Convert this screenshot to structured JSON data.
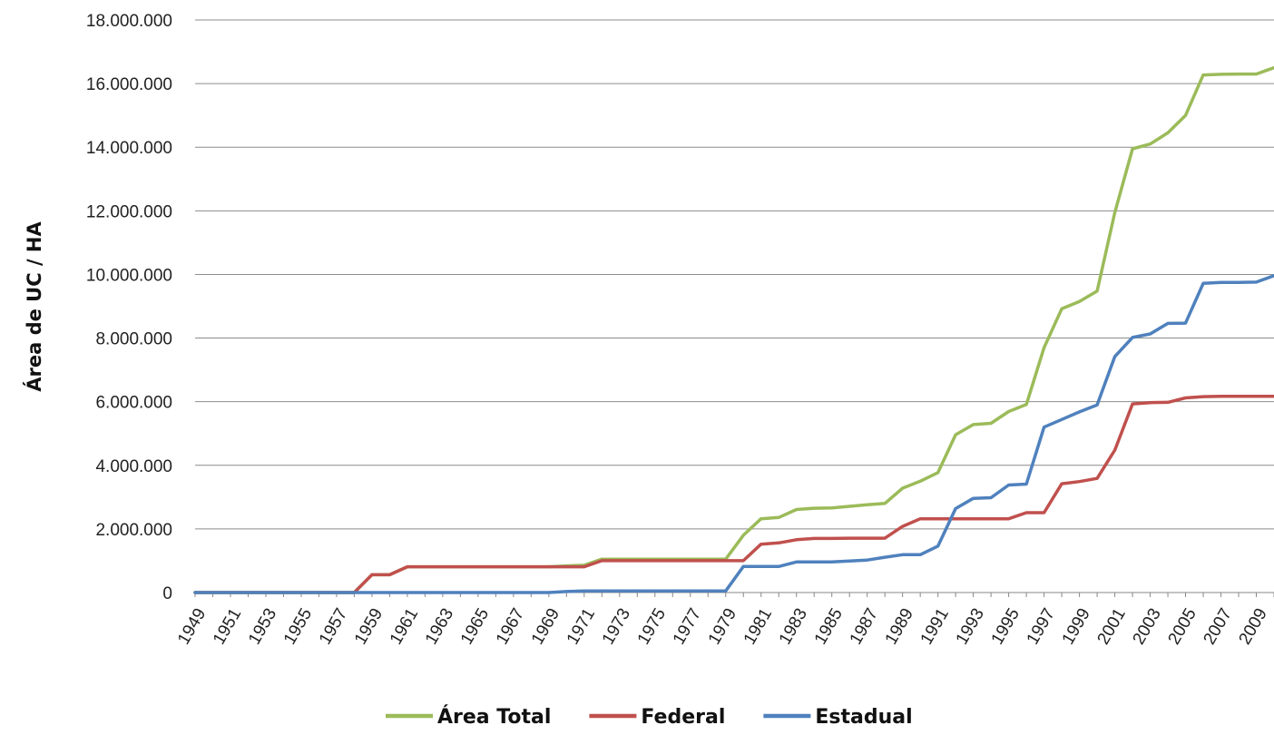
{
  "chart_data": {
    "type": "line",
    "title": "",
    "xlabel": "",
    "ylabel": "Área de UC / HA",
    "x": [
      1949,
      1950,
      1951,
      1952,
      1953,
      1954,
      1955,
      1956,
      1957,
      1958,
      1959,
      1960,
      1961,
      1962,
      1963,
      1964,
      1965,
      1966,
      1967,
      1968,
      1969,
      1970,
      1971,
      1972,
      1973,
      1974,
      1975,
      1976,
      1977,
      1978,
      1979,
      1980,
      1981,
      1982,
      1983,
      1984,
      1985,
      1986,
      1987,
      1988,
      1989,
      1990,
      1991,
      1992,
      1993,
      1994,
      1995,
      1996,
      1997,
      1998,
      1999,
      2000,
      2001,
      2002,
      2003,
      2004,
      2005,
      2006,
      2007,
      2008,
      2009,
      2010
    ],
    "x_tick_labels": [
      "1949",
      "1951",
      "1953",
      "1955",
      "1957",
      "1959",
      "1961",
      "1963",
      "1965",
      "1967",
      "1969",
      "1971",
      "1973",
      "1975",
      "1977",
      "1979",
      "1981",
      "1983",
      "1985",
      "1987",
      "1989",
      "1991",
      "1993",
      "1995",
      "1997",
      "1999",
      "2001",
      "2003",
      "2005",
      "2007",
      "2009"
    ],
    "ylim": [
      0,
      18000000
    ],
    "y_ticks": [
      0,
      2000000,
      4000000,
      6000000,
      8000000,
      10000000,
      12000000,
      14000000,
      16000000,
      18000000
    ],
    "y_tick_labels": [
      "0",
      "2.000.000",
      "4.000.000",
      "6.000.000",
      "8.000.000",
      "10.000.000",
      "12.000.000",
      "14.000.000",
      "16.000.000",
      "18.000.000"
    ],
    "grid": "horizontal",
    "legend_position": "bottom",
    "series": [
      {
        "name": "Área Total",
        "color": "#9BBB59",
        "values": [
          0,
          0,
          0,
          0,
          0,
          0,
          0,
          0,
          0,
          0,
          560000,
          560000,
          810000,
          810000,
          810000,
          810000,
          810000,
          810000,
          810000,
          810000,
          810000,
          840000,
          860000,
          1050000,
          1050000,
          1050000,
          1050000,
          1050000,
          1050000,
          1050000,
          1050000,
          1800000,
          2320000,
          2360000,
          2610000,
          2650000,
          2660000,
          2710000,
          2760000,
          2800000,
          3280000,
          3500000,
          3770000,
          4960000,
          5280000,
          5320000,
          5690000,
          5910000,
          7700000,
          8920000,
          9150000,
          9480000,
          11950000,
          13950000,
          14100000,
          14450000,
          15000000,
          16270000,
          16290000,
          16300000,
          16300000,
          16500000
        ]
      },
      {
        "name": "Federal",
        "color": "#C0504D",
        "values": [
          0,
          0,
          0,
          0,
          0,
          0,
          0,
          0,
          0,
          0,
          560000,
          560000,
          810000,
          810000,
          810000,
          810000,
          810000,
          810000,
          810000,
          810000,
          810000,
          810000,
          810000,
          1000000,
          1000000,
          1000000,
          1000000,
          1000000,
          1000000,
          1000000,
          1000000,
          1000000,
          1520000,
          1560000,
          1660000,
          1700000,
          1700000,
          1710000,
          1710000,
          1710000,
          2080000,
          2320000,
          2320000,
          2320000,
          2320000,
          2320000,
          2320000,
          2510000,
          2510000,
          3420000,
          3490000,
          3590000,
          4480000,
          5930000,
          5970000,
          5980000,
          6120000,
          6160000,
          6170000,
          6170000,
          6170000,
          6170000
        ]
      },
      {
        "name": "Estadual",
        "color": "#4F81BD",
        "values": [
          0,
          0,
          0,
          0,
          0,
          0,
          0,
          0,
          0,
          0,
          0,
          0,
          0,
          0,
          0,
          0,
          0,
          0,
          0,
          0,
          0,
          30000,
          50000,
          50000,
          50000,
          50000,
          50000,
          50000,
          50000,
          50000,
          50000,
          820000,
          820000,
          820000,
          960000,
          960000,
          960000,
          990000,
          1020000,
          1110000,
          1190000,
          1190000,
          1460000,
          2640000,
          2960000,
          2980000,
          3380000,
          3410000,
          5200000,
          5440000,
          5680000,
          5900000,
          7420000,
          8020000,
          8130000,
          8460000,
          8470000,
          9720000,
          9750000,
          9750000,
          9760000,
          9960000
        ]
      }
    ]
  }
}
